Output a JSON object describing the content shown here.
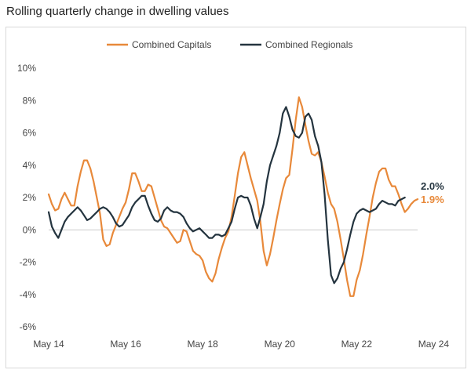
{
  "title": "Rolling quarterly change in dwelling values",
  "colors": {
    "capitals": "#e8893a",
    "regionals": "#24343f",
    "zero_line": "#cccccc"
  },
  "chart_data": {
    "type": "line",
    "title": "Rolling quarterly change in dwelling values",
    "xlabel": "",
    "ylabel": "",
    "x_tick_labels": [
      "May 14",
      "May 16",
      "May 18",
      "May 20",
      "May 22",
      "May 24"
    ],
    "x_tick_index": [
      0,
      24,
      48,
      72,
      96,
      120
    ],
    "y_ticks": [
      -6,
      -4,
      -2,
      0,
      2,
      4,
      6,
      8,
      10
    ],
    "y_tick_labels": [
      "-6%",
      "-4%",
      "-2%",
      "0%",
      "2%",
      "4%",
      "6%",
      "8%",
      "10%"
    ],
    "ylim": [
      -6,
      10
    ],
    "x_start": "May 14",
    "x_end": "May 24",
    "grid": false,
    "legend_position": "top-center",
    "series": [
      {
        "name": "Combined Capitals",
        "color": "#e8893a",
        "end_label": "1.9%",
        "values": [
          2.2,
          1.6,
          1.2,
          1.3,
          1.9,
          2.3,
          1.9,
          1.5,
          1.5,
          2.7,
          3.6,
          4.3,
          4.3,
          3.8,
          3.0,
          2.0,
          1.0,
          -0.6,
          -1.0,
          -0.9,
          -0.2,
          0.3,
          0.8,
          1.3,
          1.7,
          2.5,
          3.5,
          3.5,
          3.0,
          2.4,
          2.4,
          2.8,
          2.7,
          2.0,
          1.3,
          0.6,
          0.2,
          0.1,
          -0.2,
          -0.5,
          -0.8,
          -0.7,
          0.0,
          -0.1,
          -0.7,
          -1.3,
          -1.5,
          -1.6,
          -1.9,
          -2.6,
          -3.0,
          -3.2,
          -2.7,
          -1.8,
          -1.1,
          -0.5,
          -0.1,
          0.8,
          2.1,
          3.5,
          4.5,
          4.8,
          4.0,
          3.2,
          2.5,
          1.8,
          0.5,
          -1.3,
          -2.2,
          -1.5,
          -0.5,
          0.6,
          1.6,
          2.5,
          3.2,
          3.4,
          5.0,
          6.8,
          8.2,
          7.6,
          6.5,
          5.5,
          4.7,
          4.6,
          4.8,
          4.2,
          3.3,
          2.3,
          1.6,
          1.3,
          0.5,
          -0.6,
          -1.8,
          -3.1,
          -4.1,
          -4.1,
          -3.1,
          -2.5,
          -1.5,
          -0.3,
          0.8,
          2.0,
          2.9,
          3.6,
          3.8,
          3.8,
          3.1,
          2.7,
          2.7,
          2.2,
          1.6,
          1.1,
          1.3,
          1.6,
          1.8,
          1.9
        ]
      },
      {
        "name": "Combined Regionals",
        "color": "#24343f",
        "end_label": "2.0%",
        "values": [
          1.1,
          0.2,
          -0.2,
          -0.5,
          0.0,
          0.5,
          0.8,
          1.0,
          1.2,
          1.4,
          1.2,
          0.9,
          0.6,
          0.7,
          0.9,
          1.1,
          1.3,
          1.4,
          1.3,
          1.1,
          0.8,
          0.4,
          0.2,
          0.3,
          0.6,
          0.9,
          1.4,
          1.7,
          1.9,
          2.1,
          2.1,
          1.5,
          1.0,
          0.6,
          0.5,
          0.7,
          1.2,
          1.4,
          1.2,
          1.1,
          1.1,
          1.0,
          0.8,
          0.4,
          0.1,
          -0.1,
          0.0,
          0.1,
          -0.1,
          -0.3,
          -0.5,
          -0.5,
          -0.3,
          -0.3,
          -0.4,
          -0.3,
          0.1,
          0.5,
          1.3,
          2.0,
          2.1,
          2.0,
          2.0,
          1.5,
          0.7,
          0.1,
          0.8,
          1.6,
          3.0,
          4.0,
          4.6,
          5.2,
          6.0,
          7.2,
          7.6,
          7.0,
          6.2,
          5.8,
          5.7,
          6.0,
          7.0,
          7.2,
          6.8,
          5.8,
          5.2,
          4.2,
          2.2,
          -0.6,
          -2.8,
          -3.3,
          -3.0,
          -2.4,
          -2.0,
          -1.2,
          -0.3,
          0.5,
          1.0,
          1.2,
          1.3,
          1.2,
          1.1,
          1.2,
          1.3,
          1.6,
          1.8,
          1.7,
          1.6,
          1.6,
          1.5,
          1.8,
          1.9,
          2.0
        ]
      }
    ]
  }
}
